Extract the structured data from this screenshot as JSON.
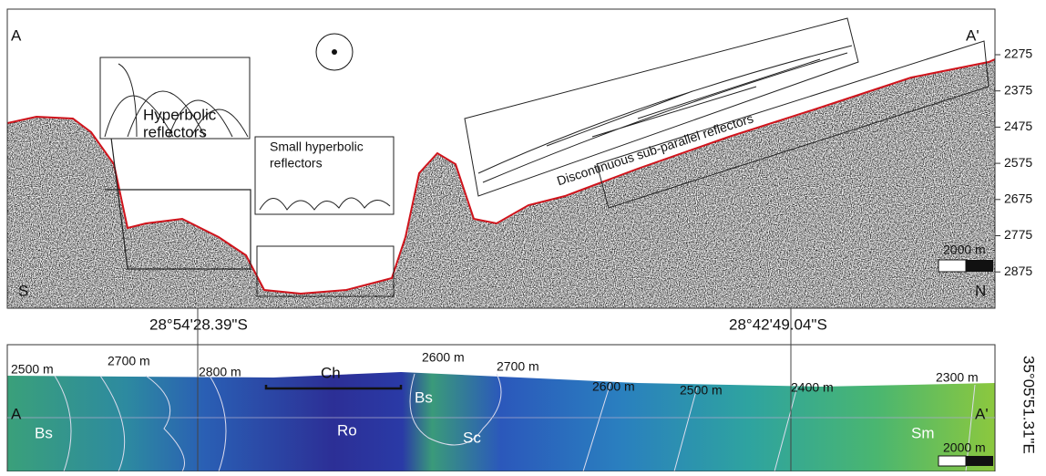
{
  "seismic_profile": {
    "start_label": "A",
    "end_label": "A'",
    "south_label": "S",
    "north_label": "N",
    "depth_ticks": [
      2275,
      2375,
      2475,
      2575,
      2675,
      2775,
      2875
    ],
    "inset_hyperbolic": [
      "Hyperbolic",
      "reflectors"
    ],
    "inset_small_hyperbolic": [
      "Small hyperbolic",
      "reflectors"
    ],
    "inset_subparallel": "Discontinuous sub-parallel reflectors",
    "scale_bar": "2000 m"
  },
  "coordinates": [
    "28°54'28.39\"S",
    "28°42'49.04\"S",
    "35°05'51.31\"E"
  ],
  "bathymetry_map": {
    "contours": [
      "2500 m",
      "2700 m",
      "2800 m",
      "2600 m",
      "2700 m",
      "2600 m",
      "2500 m",
      "2400 m",
      "2300 m"
    ],
    "channel": "Ch",
    "start_label": "A",
    "end_label": "A'",
    "units": [
      "Bs",
      "Ro",
      "Bs",
      "Sc",
      "Sm"
    ],
    "scale_bar": "2000 m"
  }
}
